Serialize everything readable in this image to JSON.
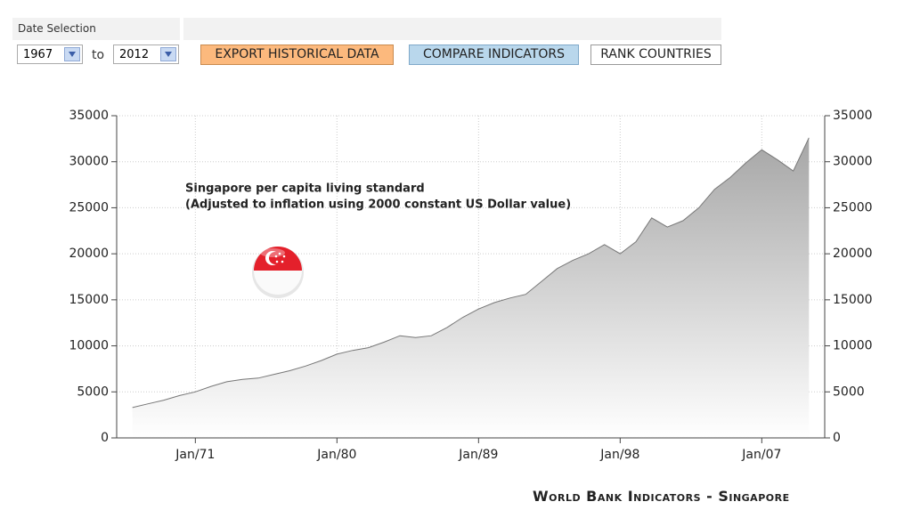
{
  "controls": {
    "date_label": "Date Selection",
    "from": "1967",
    "to_label": "to",
    "to": "2012",
    "buttons": [
      "EXPORT HISTORICAL DATA",
      "COMPARE INDICATORS",
      "RANK COUNTRIES"
    ]
  },
  "footer": "World Bank Indicators - Singapore",
  "chart_data": {
    "type": "area",
    "annotation": [
      "Singapore per capita living standard",
      "(Adjusted to inflation using 2000 constant US Dollar value)"
    ],
    "x": [
      1967,
      1968,
      1969,
      1970,
      1971,
      1972,
      1973,
      1974,
      1975,
      1976,
      1977,
      1978,
      1979,
      1980,
      1981,
      1982,
      1983,
      1984,
      1985,
      1986,
      1987,
      1988,
      1989,
      1990,
      1991,
      1992,
      1993,
      1994,
      1995,
      1996,
      1997,
      1998,
      1999,
      2000,
      2001,
      2002,
      2003,
      2004,
      2005,
      2006,
      2007,
      2008,
      2009,
      2010
    ],
    "values": [
      3300,
      3700,
      4100,
      4600,
      5000,
      5600,
      6100,
      6350,
      6500,
      6900,
      7300,
      7800,
      8400,
      9100,
      9500,
      9800,
      10400,
      11100,
      10900,
      11100,
      12000,
      13100,
      14000,
      14700,
      15200,
      15600,
      17000,
      18400,
      19300,
      20000,
      21000,
      20000,
      21300,
      23900,
      22900,
      23600,
      25000,
      27000,
      28300,
      29900,
      31300,
      30200,
      29000,
      32600
    ],
    "color": "#777777",
    "xlim": [
      1966,
      2011
    ],
    "xticks": [
      {
        "value": 1971,
        "label": "Jan/71"
      },
      {
        "value": 1980,
        "label": "Jan/80"
      },
      {
        "value": 1989,
        "label": "Jan/89"
      },
      {
        "value": 1998,
        "label": "Jan/98"
      },
      {
        "value": 2007,
        "label": "Jan/07"
      }
    ],
    "ylim": [
      0,
      35000
    ],
    "yticks": [
      0,
      5000,
      10000,
      15000,
      20000,
      25000,
      30000,
      35000
    ],
    "y2lim": [
      0,
      35000
    ],
    "y2ticks": [
      0,
      5000,
      10000,
      15000,
      20000,
      25000,
      30000,
      35000
    ],
    "grid": true
  }
}
